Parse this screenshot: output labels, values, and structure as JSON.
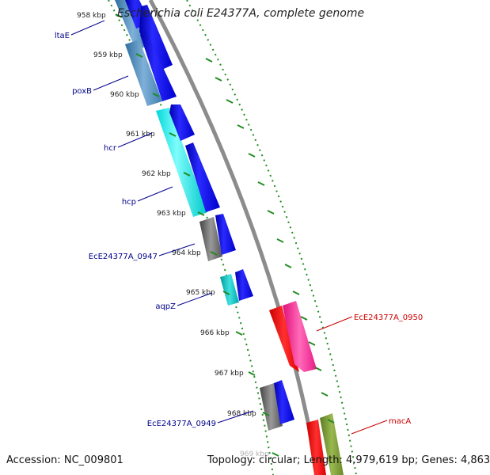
{
  "title": "Escherichia coli E24377A, complete genome",
  "footer": {
    "accession_label": "Accession:",
    "accession": "NC_009801",
    "topology_label": "Topology:",
    "topology": "circular",
    "length_label": "Length:",
    "length": "4,979,619 bp",
    "genes_label": "Genes:",
    "genes": "4,863"
  },
  "colors": {
    "forward_label": "#00008b",
    "reverse_label": "#cc0000",
    "backbone": "#8c8c8c",
    "tick": "#228b22"
  },
  "ticks": [
    {
      "label": "958 kbp"
    },
    {
      "label": "959 kbp"
    },
    {
      "label": "960 kbp"
    },
    {
      "label": "961 kbp"
    },
    {
      "label": "962 kbp"
    },
    {
      "label": "963 kbp"
    },
    {
      "label": "964 kbp"
    },
    {
      "label": "965 kbp"
    },
    {
      "label": "966 kbp"
    },
    {
      "label": "967 kbp"
    },
    {
      "label": "968 kbp"
    },
    {
      "label": "969 kbp"
    }
  ],
  "gene_labels": [
    {
      "name": "ltaE",
      "strand": "forward"
    },
    {
      "name": "poxB",
      "strand": "forward"
    },
    {
      "name": "hcr",
      "strand": "forward"
    },
    {
      "name": "hcp",
      "strand": "forward"
    },
    {
      "name": "EcE24377A_0947",
      "strand": "forward"
    },
    {
      "name": "aqpZ",
      "strand": "forward"
    },
    {
      "name": "EcE24377A_0949",
      "strand": "forward"
    },
    {
      "name": "EcE24377A_0950",
      "strand": "reverse"
    },
    {
      "name": "macA",
      "strand": "reverse"
    }
  ]
}
